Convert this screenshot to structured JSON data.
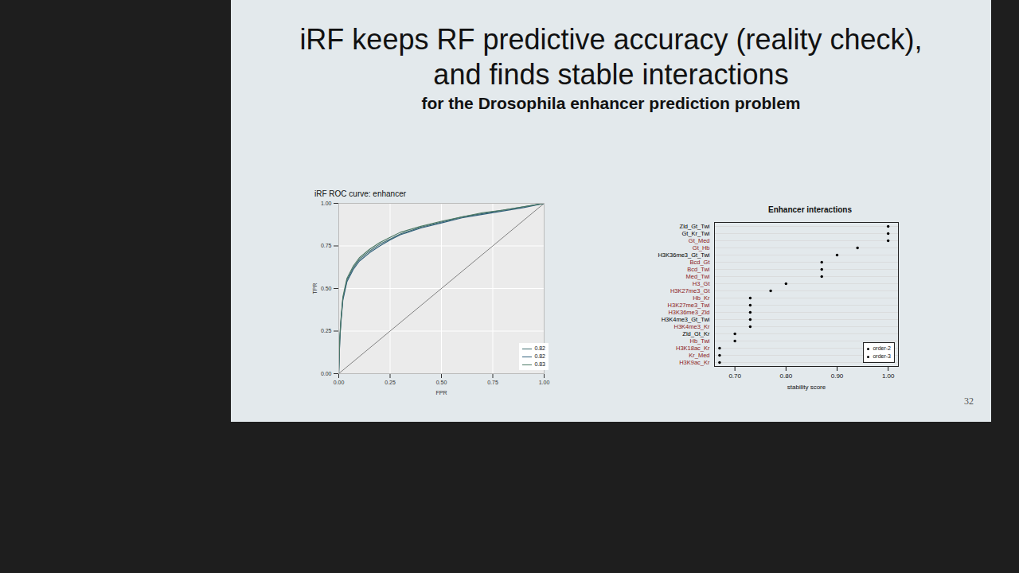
{
  "slide": {
    "title": [
      "iRF keeps RF predictive accuracy (reality check),",
      "and finds stable interactions"
    ],
    "subtitle": "for the Drosophila enhancer prediction problem",
    "page_number": 32
  },
  "chart_data": [
    {
      "type": "line",
      "title": "iRF ROC curve: enhancer",
      "x_label": "FPR",
      "y_label": "TPR",
      "x": [
        0,
        0.005,
        0.01,
        0.02,
        0.04,
        0.07,
        0.1,
        0.15,
        0.2,
        0.25,
        0.3,
        0.4,
        0.5,
        0.6,
        0.7,
        0.8,
        0.9,
        1.0
      ],
      "series": [
        {
          "name": "0.82",
          "color": "#3d6b6e",
          "values": [
            0,
            0.2,
            0.3,
            0.44,
            0.55,
            0.62,
            0.67,
            0.72,
            0.76,
            0.79,
            0.82,
            0.86,
            0.89,
            0.92,
            0.94,
            0.96,
            0.98,
            1.0
          ]
        },
        {
          "name": "0.82",
          "color": "#2f5f7a",
          "values": [
            0,
            0.19,
            0.29,
            0.43,
            0.54,
            0.61,
            0.66,
            0.71,
            0.75,
            0.785,
            0.815,
            0.855,
            0.885,
            0.915,
            0.935,
            0.955,
            0.975,
            1.0
          ]
        },
        {
          "name": "0.83",
          "color": "#4d7a66",
          "values": [
            0,
            0.21,
            0.31,
            0.45,
            0.56,
            0.63,
            0.68,
            0.73,
            0.77,
            0.8,
            0.83,
            0.865,
            0.895,
            0.92,
            0.945,
            0.96,
            0.98,
            1.0
          ]
        }
      ],
      "reference_line": {
        "x": [
          0,
          1
        ],
        "y": [
          0,
          1
        ]
      },
      "xlim": [
        0,
        1
      ],
      "ylim": [
        0,
        1
      ],
      "xticks": [
        {
          "value": 0,
          "label": "0.00"
        },
        {
          "value": 0.25,
          "label": "0.25"
        },
        {
          "value": 0.5,
          "label": "0.50"
        },
        {
          "value": 0.75,
          "label": "0.75"
        },
        {
          "value": 1,
          "label": "1.00"
        }
      ],
      "yticks": [
        {
          "value": 0,
          "label": "0.00"
        },
        {
          "value": 0.25,
          "label": "0.25"
        },
        {
          "value": 0.5,
          "label": "0.50"
        },
        {
          "value": 0.75,
          "label": "0.75"
        },
        {
          "value": 1,
          "label": "1.00"
        }
      ],
      "grid": true,
      "legend": "bottom-right"
    },
    {
      "type": "dot",
      "title": "Enhancer interactions",
      "x_label": "stability score",
      "color": "#000000",
      "categories": [
        "Zld_Gt_Twi",
        "Gt_Kr_Twi",
        "Gt_Med",
        "Gt_Hb",
        "H3K36me3_Gt_Twi",
        "Bcd_Gt",
        "Bcd_Twi",
        "Med_Twi",
        "H3_Gt",
        "H3K27me3_Gt",
        "Hb_Kr",
        "H3K27me3_Twi",
        "H3K36me3_Zld",
        "H3K4me3_Gt_Twi",
        "H3K4me3_Kr",
        "Zld_Gt_Kr",
        "Hb_Twi",
        "H3K18ac_Kr",
        "Kr_Med",
        "H3K9ac_Kr"
      ],
      "values": [
        1.0,
        1.0,
        1.0,
        0.94,
        0.9,
        0.87,
        0.87,
        0.87,
        0.8,
        0.77,
        0.73,
        0.73,
        0.73,
        0.73,
        0.73,
        0.7,
        0.7,
        0.67,
        0.67,
        0.67
      ],
      "orders": [
        "order-3",
        "order-3",
        "order-2",
        "order-2",
        "order-3",
        "order-2",
        "order-2",
        "order-2",
        "order-2",
        "order-2",
        "order-2",
        "order-2",
        "order-2",
        "order-3",
        "order-2",
        "order-3",
        "order-2",
        "order-2",
        "order-2",
        "order-2"
      ],
      "series": [
        {
          "name": "order-2",
          "color": "#8b1a1a"
        },
        {
          "name": "order-3",
          "color": "#000000"
        }
      ],
      "xlim": [
        0.66,
        1.02
      ],
      "xticks": [
        {
          "value": 0.7,
          "label": "0.70"
        },
        {
          "value": 0.8,
          "label": "0.80"
        },
        {
          "value": 0.9,
          "label": "0.90"
        },
        {
          "value": 1.0,
          "label": "1.00"
        }
      ],
      "grid": true,
      "legend": "bottom-right"
    }
  ]
}
